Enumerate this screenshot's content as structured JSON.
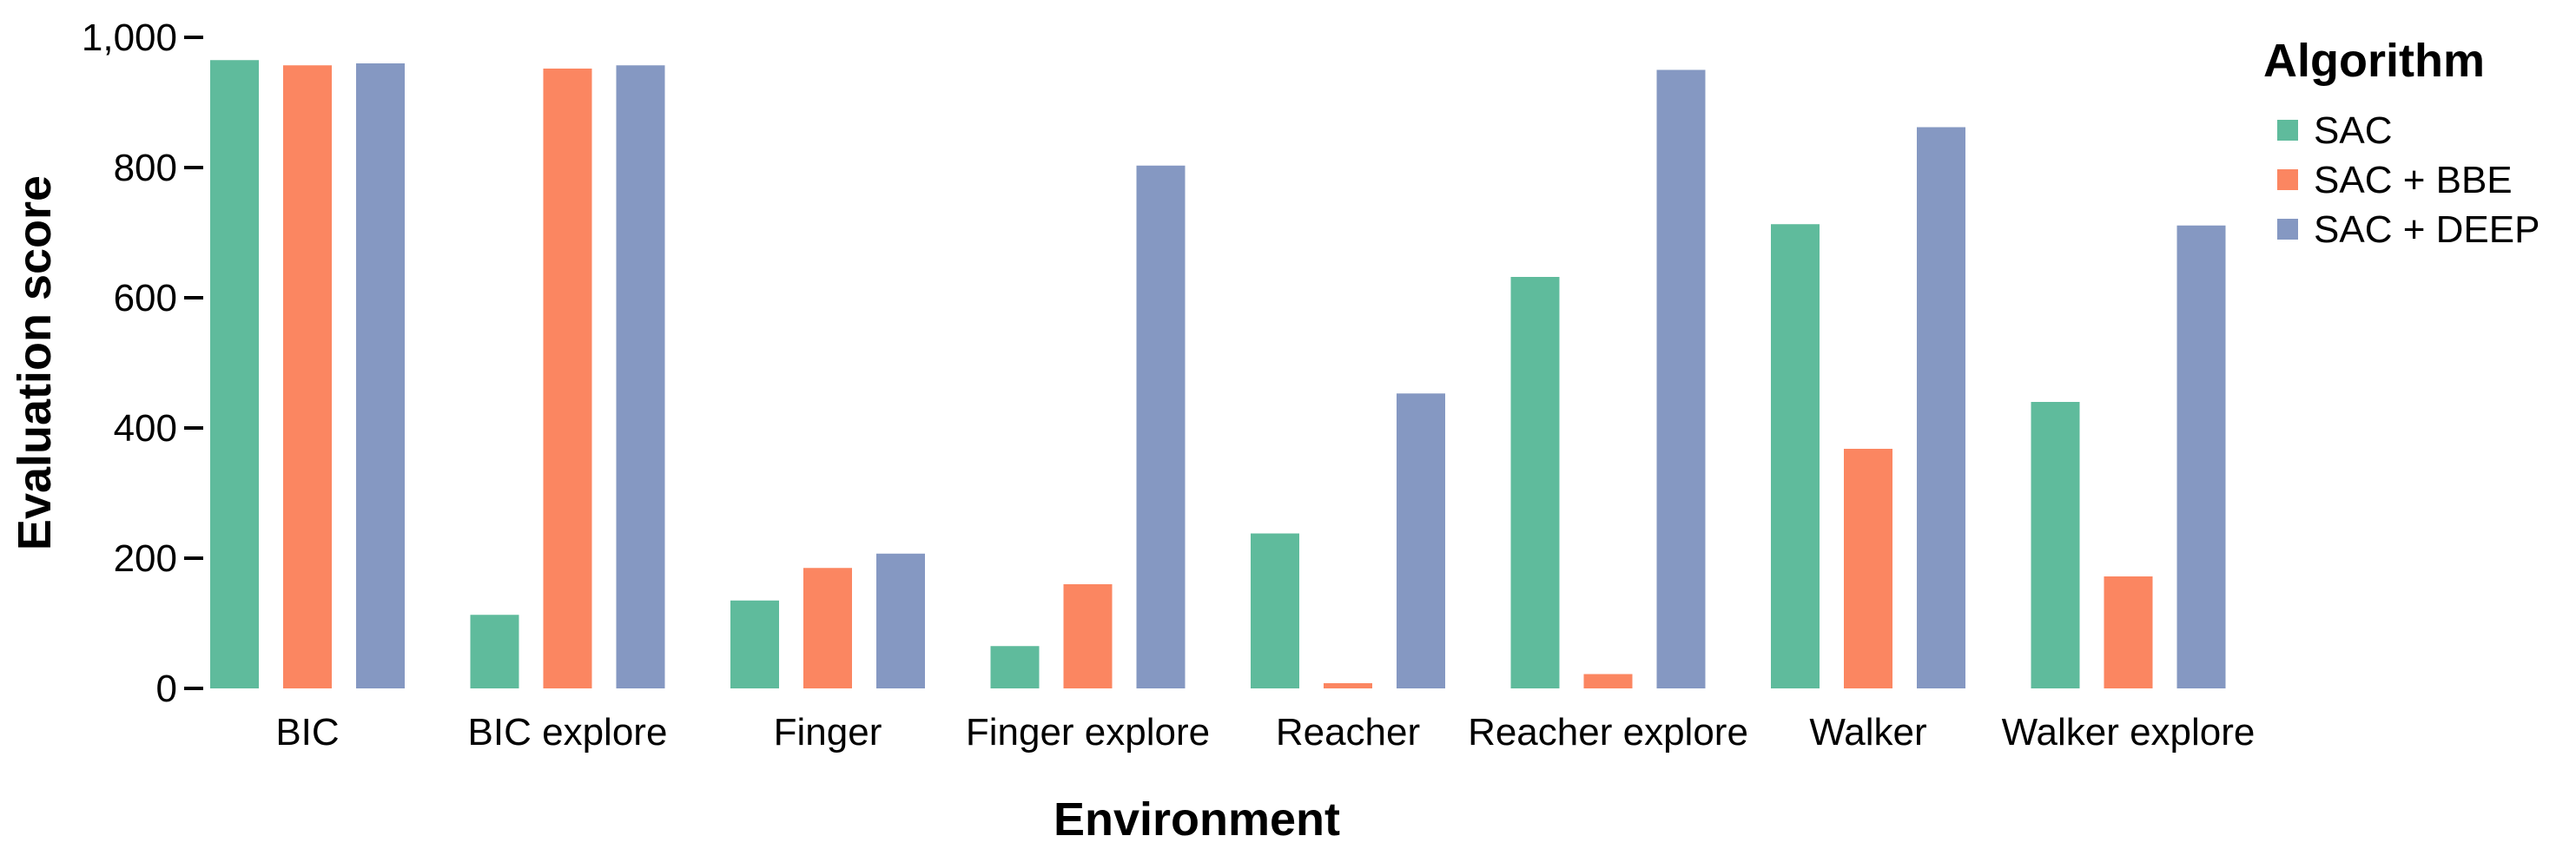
{
  "chart_data": {
    "type": "bar",
    "xlabel": "Environment",
    "ylabel": "Evaluation score",
    "ylim": [
      0,
      1000
    ],
    "yticks": [
      0,
      200,
      400,
      600,
      800,
      1000
    ],
    "ytick_labels": [
      "0",
      "200",
      "400",
      "600",
      "800",
      "1,000"
    ],
    "categories": [
      "BIC",
      "BIC explore",
      "Finger",
      "Finger explore",
      "Reacher",
      "Reacher explore",
      "Walker",
      "Walker explore"
    ],
    "legend_title": "Algorithm",
    "legend_position": "top-right",
    "grid": false,
    "series": [
      {
        "name": "SAC",
        "color": "#5fbb9c",
        "values": [
          965,
          113,
          135,
          65,
          238,
          632,
          713,
          440
        ]
      },
      {
        "name": "SAC + BBE",
        "color": "#fb8661",
        "values": [
          957,
          952,
          185,
          160,
          8,
          22,
          368,
          172
        ]
      },
      {
        "name": "SAC + DEEP",
        "color": "#8598c2",
        "values": [
          960,
          957,
          207,
          803,
          453,
          950,
          862,
          711
        ]
      }
    ]
  }
}
